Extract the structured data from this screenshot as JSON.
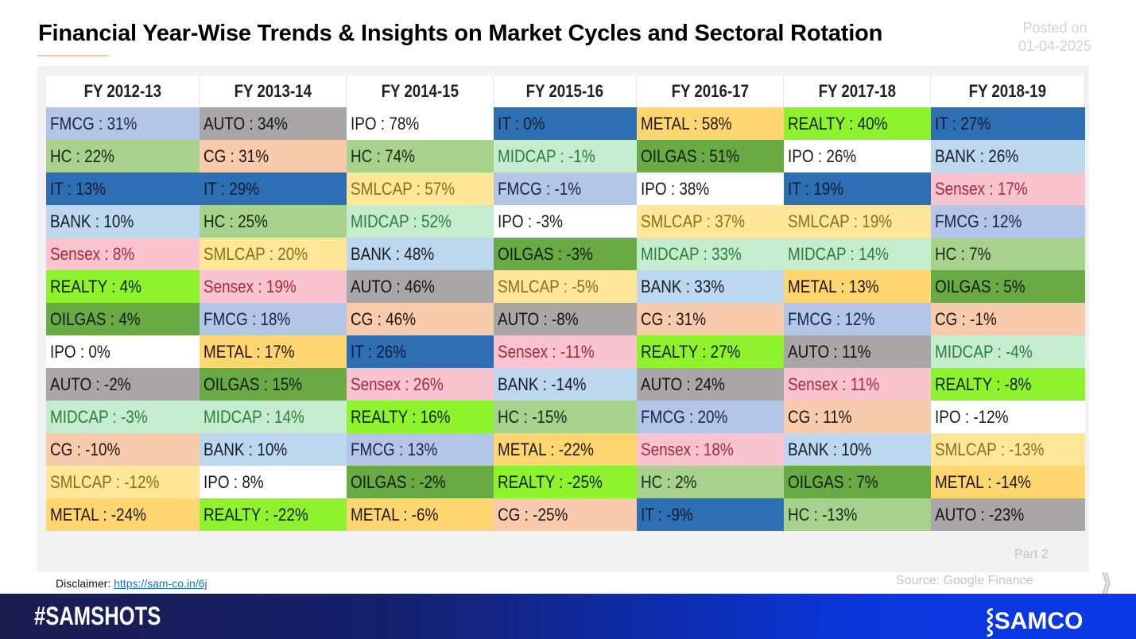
{
  "header": {
    "title": "Financial Year-Wise Trends & Insights on Market Cycles and Sectoral Rotation",
    "posted_label": "Posted on",
    "posted_date": "01-04-2025"
  },
  "sector_colors": {
    "FMCG": {
      "bg": "#b4c6e7",
      "fg": "#1c2448"
    },
    "HC": {
      "bg": "#a9d18e",
      "fg": "#152a10"
    },
    "IT": {
      "bg": "#2e6fb4",
      "fg": "#0d1a33"
    },
    "BANK": {
      "bg": "#bdd7ee",
      "fg": "#141c28"
    },
    "Sensex": {
      "bg": "#f9c4cf",
      "fg": "#a02c3c"
    },
    "REALTY": {
      "bg": "#8ef22c",
      "fg": "#102008"
    },
    "OILGAS": {
      "bg": "#6aaa44",
      "fg": "#0c1e08"
    },
    "IPO": {
      "bg": "#ffffff",
      "fg": "#1a1a1a"
    },
    "AUTO": {
      "bg": "#a8a6a6",
      "fg": "#141414"
    },
    "MIDCAP": {
      "bg": "#c6eccf",
      "fg": "#2a7f3a"
    },
    "CG": {
      "bg": "#f8cbad",
      "fg": "#1e1410"
    },
    "SMLCAP": {
      "bg": "#ffe699",
      "fg": "#8a6e1c"
    },
    "METAL": {
      "bg": "#ffd670",
      "fg": "#1e1608"
    }
  },
  "table": {
    "columns": [
      {
        "header": "FY 2012-13",
        "cells": [
          [
            "FMCG",
            "31%"
          ],
          [
            "HC",
            "22%"
          ],
          [
            "IT",
            "13%"
          ],
          [
            "BANK",
            "10%"
          ],
          [
            "Sensex",
            "8%"
          ],
          [
            "REALTY",
            "4%"
          ],
          [
            "OILGAS",
            "4%"
          ],
          [
            "IPO",
            "0%"
          ],
          [
            "AUTO",
            "-2%"
          ],
          [
            "MIDCAP",
            "-3%"
          ],
          [
            "CG",
            "-10%"
          ],
          [
            "SMLCAP",
            "-12%"
          ],
          [
            "METAL",
            "-24%"
          ]
        ]
      },
      {
        "header": "FY 2013-14",
        "cells": [
          [
            "AUTO",
            "34%"
          ],
          [
            "CG",
            "31%"
          ],
          [
            "IT",
            "29%"
          ],
          [
            "HC",
            "25%"
          ],
          [
            "SMLCAP",
            "20%"
          ],
          [
            "Sensex",
            "19%"
          ],
          [
            "FMCG",
            "18%"
          ],
          [
            "METAL",
            "17%"
          ],
          [
            "OILGAS",
            "15%"
          ],
          [
            "MIDCAP",
            "14%"
          ],
          [
            "BANK",
            "10%"
          ],
          [
            "IPO",
            "8%"
          ],
          [
            "REALTY",
            "-22%"
          ]
        ]
      },
      {
        "header": "FY 2014-15",
        "cells": [
          [
            "IPO",
            "78%"
          ],
          [
            "HC",
            "74%"
          ],
          [
            "SMLCAP",
            "57%"
          ],
          [
            "MIDCAP",
            "52%"
          ],
          [
            "BANK",
            "48%"
          ],
          [
            "AUTO",
            "46%"
          ],
          [
            "CG",
            "46%"
          ],
          [
            "IT",
            "26%"
          ],
          [
            "Sensex",
            "26%"
          ],
          [
            "REALTY",
            "16%"
          ],
          [
            "FMCG",
            "13%"
          ],
          [
            "OILGAS",
            "-2%"
          ],
          [
            "METAL",
            "-6%"
          ]
        ]
      },
      {
        "header": "FY 2015-16",
        "cells": [
          [
            "IT",
            "0%"
          ],
          [
            "MIDCAP",
            "-1%"
          ],
          [
            "FMCG",
            "-1%"
          ],
          [
            "IPO",
            "-3%"
          ],
          [
            "OILGAS",
            "-3%"
          ],
          [
            "SMLCAP",
            "-5%"
          ],
          [
            "AUTO",
            "-8%"
          ],
          [
            "Sensex",
            "-11%"
          ],
          [
            "BANK",
            "-14%"
          ],
          [
            "HC",
            "-15%"
          ],
          [
            "METAL",
            "-22%"
          ],
          [
            "REALTY",
            "-25%"
          ],
          [
            "CG",
            "-25%"
          ]
        ]
      },
      {
        "header": "FY 2016-17",
        "cells": [
          [
            "METAL",
            "58%"
          ],
          [
            "OILGAS",
            "51%"
          ],
          [
            "IPO",
            "38%"
          ],
          [
            "SMLCAP",
            "37%"
          ],
          [
            "MIDCAP",
            "33%"
          ],
          [
            "BANK",
            "33%"
          ],
          [
            "CG",
            "31%"
          ],
          [
            "REALTY",
            "27%"
          ],
          [
            "AUTO",
            "24%"
          ],
          [
            "FMCG",
            "20%"
          ],
          [
            "Sensex",
            "18%"
          ],
          [
            "HC",
            "2%"
          ],
          [
            "IT",
            "-9%"
          ]
        ]
      },
      {
        "header": "FY 2017-18",
        "cells": [
          [
            "REALTY",
            "40%"
          ],
          [
            "IPO",
            "26%"
          ],
          [
            "IT",
            "19%"
          ],
          [
            "SMLCAP",
            "19%"
          ],
          [
            "MIDCAP",
            "14%"
          ],
          [
            "METAL",
            "13%"
          ],
          [
            "FMCG",
            "12%"
          ],
          [
            "AUTO",
            "11%"
          ],
          [
            "Sensex",
            "11%"
          ],
          [
            "CG",
            "11%"
          ],
          [
            "BANK",
            "10%"
          ],
          [
            "OILGAS",
            "7%"
          ],
          [
            "HC",
            "-13%"
          ]
        ]
      },
      {
        "header": "FY 2018-19",
        "cells": [
          [
            "IT",
            "27%"
          ],
          [
            "BANK",
            "26%"
          ],
          [
            "Sensex",
            "17%"
          ],
          [
            "FMCG",
            "12%"
          ],
          [
            "HC",
            "7%"
          ],
          [
            "OILGAS",
            "5%"
          ],
          [
            "CG",
            "-1%"
          ],
          [
            "MIDCAP",
            "-4%"
          ],
          [
            "REALTY",
            "-8%"
          ],
          [
            "IPO",
            "-12%"
          ],
          [
            "SMLCAP",
            "-13%"
          ],
          [
            "METAL",
            "-14%"
          ],
          [
            "AUTO",
            "-23%"
          ]
        ]
      }
    ]
  },
  "panel": {
    "part_label": "Part 2"
  },
  "footer": {
    "disclaimer_label": "Disclaimer:",
    "disclaimer_link": "https://sam-co.in/6j",
    "source": "Source: Google Finance",
    "next_icon": "double-chevron-right-icon",
    "hashtag": "#SAMSHOTS",
    "logo": "SAMCO"
  }
}
